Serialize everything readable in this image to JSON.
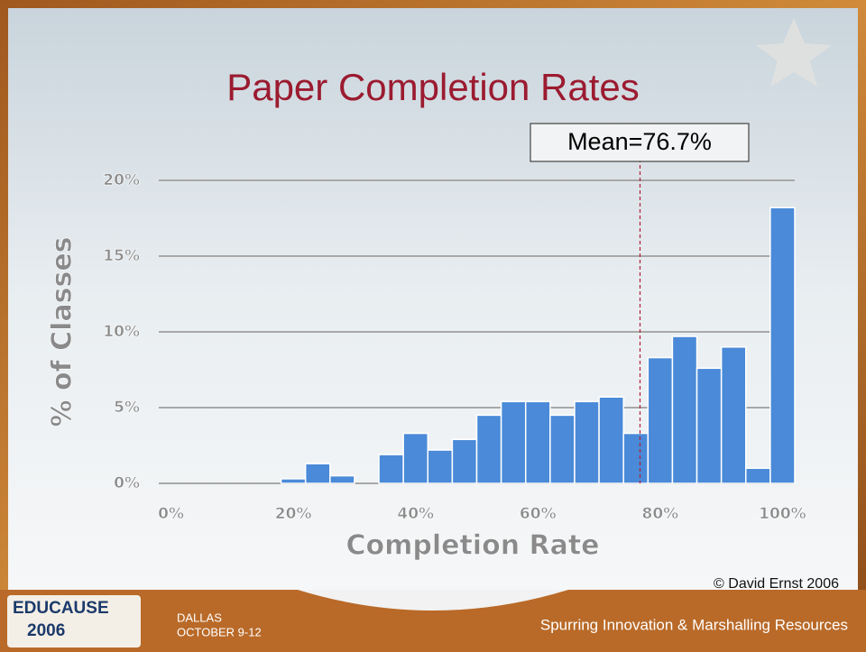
{
  "chart_data": {
    "type": "histogram",
    "title": "Paper Completion Rates",
    "x_label": "Completion Rate",
    "y_label": "% of Classes",
    "bins": [
      -2,
      2,
      6,
      10,
      14,
      18,
      22,
      26,
      30,
      34,
      38,
      42,
      46,
      50,
      54,
      58,
      62,
      66,
      70,
      74,
      78,
      82,
      86,
      90,
      94,
      98,
      102
    ],
    "values": [
      0,
      0,
      0,
      0,
      0,
      0.3,
      1.3,
      0.5,
      0,
      1.9,
      3.3,
      2.2,
      2.9,
      4.5,
      5.4,
      5.4,
      4.5,
      5.4,
      5.7,
      3.3,
      8.3,
      9.7,
      7.6,
      9.0,
      1.0,
      18.2
    ],
    "color": "#4a8ad8",
    "xlim": [
      -2,
      102
    ],
    "xticks": [
      {
        "value": 0,
        "label": "0%"
      },
      {
        "value": 20,
        "label": "20%"
      },
      {
        "value": 40,
        "label": "40%"
      },
      {
        "value": 60,
        "label": "60%"
      },
      {
        "value": 80,
        "label": "80%"
      },
      {
        "value": 100,
        "label": "100%"
      }
    ],
    "ylim": [
      0,
      20
    ],
    "yticks": [
      {
        "value": 0,
        "label": "0%"
      },
      {
        "value": 5,
        "label": "5%"
      },
      {
        "value": 10,
        "label": "10%"
      },
      {
        "value": 15,
        "label": "15%"
      },
      {
        "value": 20,
        "label": "20%"
      }
    ],
    "grid": true,
    "mean": {
      "value": 76.7,
      "label": "Mean=76.7%"
    },
    "credit": "© David Ernst 2006"
  },
  "footer": {
    "brand": "EDUCAUSE",
    "year": "2006",
    "city": "DALLAS",
    "dates": "OCTOBER 9-12",
    "slogan": "Spurring Innovation & Marshalling Resources"
  }
}
